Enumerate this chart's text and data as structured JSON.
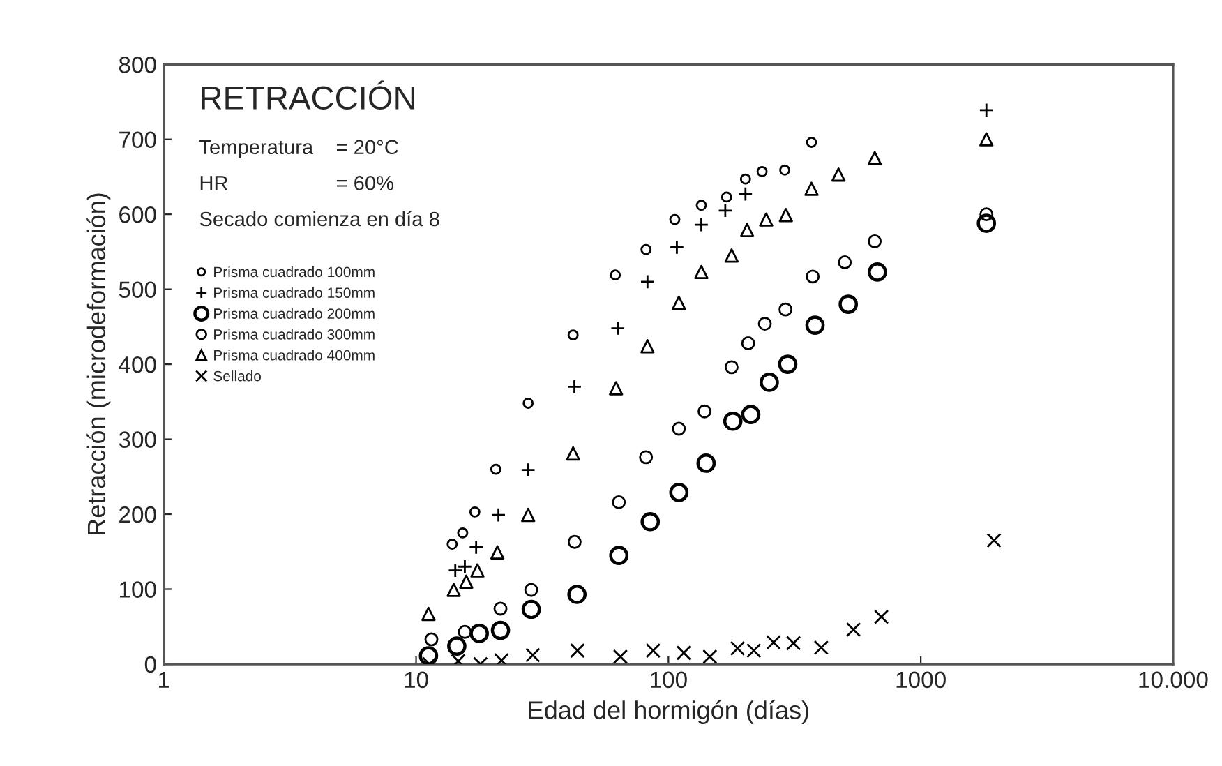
{
  "chart_data": {
    "type": "scatter",
    "title": "RETRACCIÓN",
    "xlabel": "Edad del hormigón (días)",
    "ylabel": "Retracción (microdeformación)",
    "annotations": [
      "Temperatura    = 20°C",
      "HR                   = 60%",
      "Secado comienza en día 8"
    ],
    "log": "x",
    "xlim": [
      1,
      10000
    ],
    "xticks": [
      1,
      10,
      100,
      1000,
      {
        "value": 10000,
        "label": "10.000"
      }
    ],
    "ylim": [
      0,
      800
    ],
    "yticks": [
      0,
      100,
      200,
      300,
      400,
      500,
      600,
      700,
      800
    ],
    "grid": false,
    "legend": "top left",
    "series": [
      {
        "name": "Prisma cuadrado 100mm",
        "color": "#000000",
        "marker": "circle",
        "x": [
          13.9,
          15.3,
          17.1,
          20.7,
          27.8,
          41.9,
          61.6,
          81.5,
          106,
          135,
          170,
          202,
          235,
          289,
          369
        ],
        "values": [
          160,
          175,
          203,
          260,
          348,
          439,
          519,
          553,
          593,
          612,
          623,
          647,
          657,
          659,
          696
        ]
      },
      {
        "name": "Prisma cuadrado 150mm",
        "color": "#000000",
        "marker": "plus",
        "x": [
          14.3,
          15.6,
          17.3,
          21.2,
          27.8,
          42.4,
          63,
          82.6,
          108,
          135,
          168,
          202,
          1820
        ],
        "values": [
          125,
          130,
          156,
          199,
          259,
          370,
          448,
          510,
          556,
          586,
          605,
          627,
          739
        ]
      },
      {
        "name": "Prisma cuadrado 200mm",
        "color": "#000000",
        "marker": "circle",
        "x": [
          11.2,
          14.5,
          17.8,
          21.6,
          28.6,
          43.4,
          63.6,
          84.7,
          110,
          141,
          180,
          212,
          251,
          297,
          381,
          516,
          673,
          1820
        ],
        "values": [
          11,
          24,
          41,
          45,
          73,
          93,
          145,
          190,
          229,
          268,
          324,
          333,
          376,
          400,
          452,
          480,
          523,
          588
        ]
      },
      {
        "name": "Prisma cuadrado 300mm",
        "color": "#000000",
        "marker": "circle",
        "x": [
          11.5,
          15.6,
          21.6,
          28.6,
          42.5,
          63.6,
          81.5,
          110,
          139,
          178,
          207,
          241,
          291,
          373,
          500,
          657,
          1820
        ],
        "values": [
          33,
          43,
          74,
          99,
          163,
          216,
          276,
          314,
          337,
          396,
          428,
          454,
          473,
          517,
          536,
          564,
          600
        ]
      },
      {
        "name": "Prisma cuadrado 400mm",
        "color": "#000000",
        "marker": "triangle",
        "x": [
          11.2,
          14.1,
          15.8,
          17.5,
          21,
          27.8,
          41.9,
          62,
          82.6,
          110,
          135,
          178,
          205,
          244,
          292,
          369,
          472,
          657,
          1820
        ],
        "values": [
          67,
          99,
          110,
          125,
          149,
          199,
          281,
          368,
          424,
          482,
          523,
          545,
          579,
          593,
          599,
          634,
          653,
          675,
          700
        ]
      },
      {
        "name": "Sellado",
        "color": "#000000",
        "marker": "cross",
        "x": [
          11.3,
          14.7,
          18,
          21.8,
          29,
          43.6,
          64.5,
          87,
          115,
          146,
          188,
          218,
          261,
          313,
          403,
          541,
          698,
          1950
        ],
        "values": [
          0,
          4,
          0,
          5,
          12,
          18,
          10,
          18,
          15,
          10,
          21,
          18,
          29,
          28,
          22,
          46,
          63,
          165
        ]
      }
    ]
  }
}
